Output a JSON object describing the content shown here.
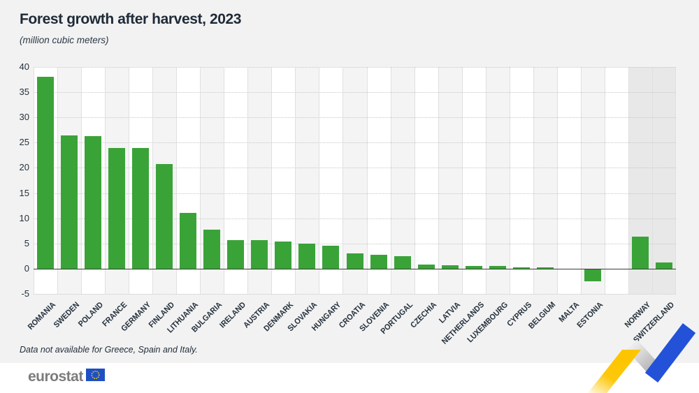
{
  "header": {
    "title": "Forest growth after harvest, 2023",
    "subtitle": "(million cubic meters)"
  },
  "footnote": "Data not available for Greece, Spain and Italy.",
  "footer": {
    "logo_text": "eurostat",
    "logo_flag_icon": "eu-flag-icon"
  },
  "colors": {
    "page_bg": "#f2f2f2",
    "bar_green": "#3aa338",
    "stripe_white": "#ffffff",
    "stripe_gray": "#f4f4f4",
    "stripe_efta": "#e8e8e8",
    "grid_dotted": "#c7c7c7",
    "grid_vertical": "#e0e0e0",
    "zero_line": "#3c3c3c",
    "text_dark": "#24303c",
    "logo_gray": "#7c7c7c",
    "eu_flag_blue": "#1e4fc4",
    "eu_star_yellow": "#ffcc00",
    "ribbon_yellow": "#fdc500",
    "ribbon_gray": "#bcbcbc",
    "ribbon_blue": "#2352d9"
  },
  "chart_data": {
    "type": "bar",
    "title": "Forest growth after harvest, 2023",
    "unit_label": "(million cubic meters)",
    "xlabel": "",
    "ylabel": "million cubic meters",
    "ylim": [
      -5,
      40
    ],
    "yticks": [
      40,
      35,
      30,
      25,
      20,
      15,
      10,
      5,
      0,
      -5
    ],
    "grid": "horizontal dotted at 5-unit steps, vertical column separators, solid zero axis",
    "legend": "none",
    "bars": [
      {
        "label": "ROMANIA",
        "value": 38.0,
        "group": "eu"
      },
      {
        "label": "SWEDEN",
        "value": 26.4,
        "group": "eu"
      },
      {
        "label": "POLAND",
        "value": 26.3,
        "group": "eu"
      },
      {
        "label": "FRANCE",
        "value": 23.9,
        "group": "eu"
      },
      {
        "label": "GERMANY",
        "value": 23.9,
        "group": "eu"
      },
      {
        "label": "FINLAND",
        "value": 20.8,
        "group": "eu"
      },
      {
        "label": "LITHUANIA",
        "value": 11.1,
        "group": "eu"
      },
      {
        "label": "BULGARIA",
        "value": 7.8,
        "group": "eu"
      },
      {
        "label": "IRELAND",
        "value": 5.7,
        "group": "eu"
      },
      {
        "label": "AUSTRIA",
        "value": 5.6,
        "group": "eu"
      },
      {
        "label": "DENMARK",
        "value": 5.4,
        "group": "eu"
      },
      {
        "label": "SLOVAKIA",
        "value": 5.0,
        "group": "eu"
      },
      {
        "label": "HUNGARY",
        "value": 4.5,
        "group": "eu"
      },
      {
        "label": "CROATIA",
        "value": 3.1,
        "group": "eu"
      },
      {
        "label": "SLOVENIA",
        "value": 2.7,
        "group": "eu"
      },
      {
        "label": "PORTUGAL",
        "value": 2.5,
        "group": "eu"
      },
      {
        "label": "CZECHIA",
        "value": 0.8,
        "group": "eu"
      },
      {
        "label": "LATVIA",
        "value": 0.7,
        "group": "eu"
      },
      {
        "label": "NETHERLANDS",
        "value": 0.6,
        "group": "eu"
      },
      {
        "label": "LUXEMBOURG",
        "value": 0.5,
        "group": "eu"
      },
      {
        "label": "CYPRUS",
        "value": 0.2,
        "group": "eu"
      },
      {
        "label": "BELGIUM",
        "value": 0.2,
        "group": "eu"
      },
      {
        "label": "MALTA",
        "value": 0.0,
        "group": "eu"
      },
      {
        "label": "ESTONIA",
        "value": -2.4,
        "group": "eu"
      },
      {
        "label": "",
        "value": null,
        "group": "spacer"
      },
      {
        "label": "NORWAY",
        "value": 6.4,
        "group": "efta"
      },
      {
        "label": "SWITZERLAND",
        "value": 1.3,
        "group": "efta"
      }
    ]
  }
}
